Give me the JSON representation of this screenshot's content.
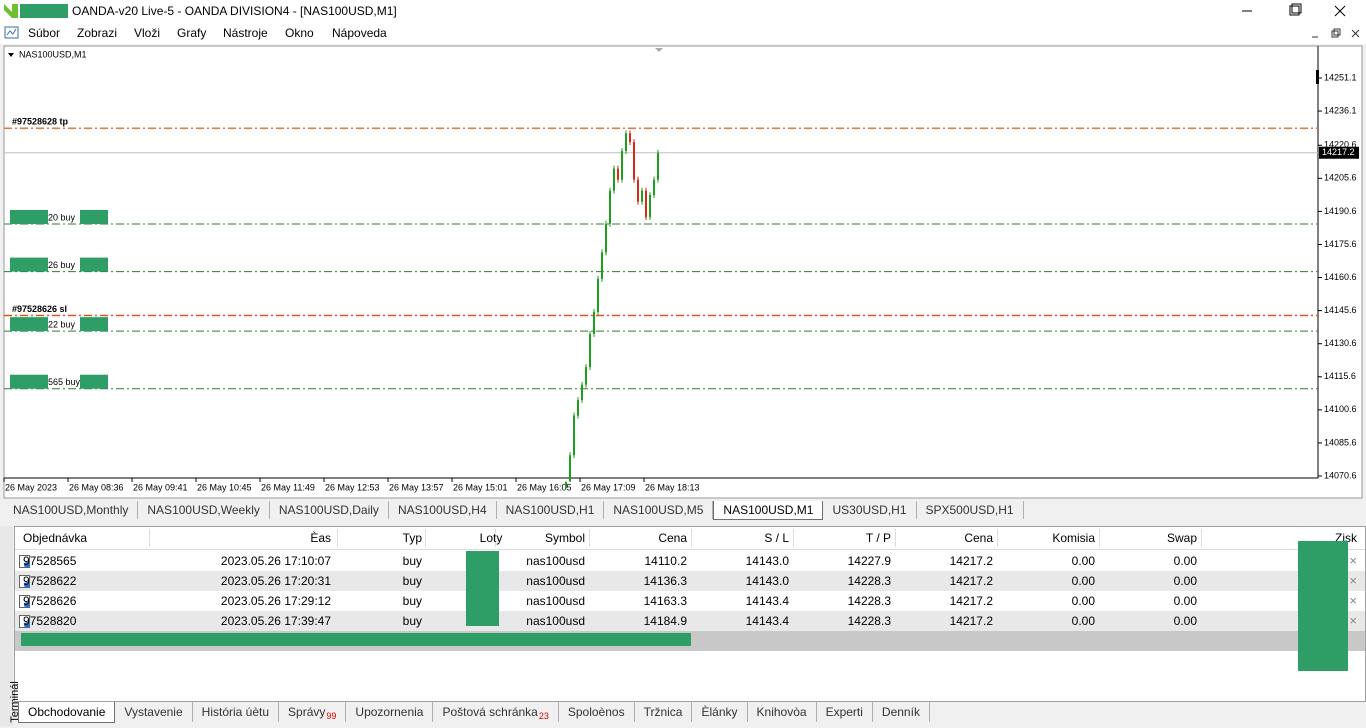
{
  "window": {
    "title": "OANDA-v20 Live-5 - OANDA DIVISION4 - [NAS100USD,M1]"
  },
  "menu": [
    "Súbor",
    "Zobrazi",
    "Vloži",
    "Grafy",
    "Nástroje",
    "Okno",
    "Nápoveda"
  ],
  "chart": {
    "symbol": "NAS100USD,M1",
    "ylim": [
      14069.7,
      14264.7
    ],
    "price_ticks": [
      14251.1,
      14236.1,
      14220.6,
      14205.6,
      14190.6,
      14175.6,
      14160.6,
      14145.6,
      14130.6,
      14115.6,
      14100.6,
      14085.6,
      14070.6
    ],
    "time_labels": [
      "26 May 2023",
      "26 May 08:36",
      "26 May 09:41",
      "26 May 10:45",
      "26 May 11:49",
      "26 May 12:53",
      "26 May 13:57",
      "26 May 15:01",
      "26 May 16:05",
      "26 May 17:09",
      "26 May 18:13"
    ],
    "current_price": 14217.2,
    "current_color": "#c0c0c0",
    "up_color": "#1e9e1e",
    "down_color": "#d42a1a",
    "closes": [
      14068,
      14080,
      14098,
      14105,
      14112,
      14120,
      14135,
      14145,
      14160,
      14172,
      14185,
      14200,
      14210,
      14205,
      14218,
      14226,
      14222,
      14205,
      14195,
      14200,
      14188,
      14198,
      14205,
      14217.2
    ],
    "lines": [
      {
        "label": "#97528628 tp",
        "price": 14228.3,
        "color": "#e8733a"
      },
      {
        "label": "20 buy",
        "price": 14184.9,
        "color": "#2e7d32"
      },
      {
        "label": "26 buy",
        "price": 14163.3,
        "color": "#2e7d32"
      },
      {
        "label": "#97528626 sl",
        "price": 14143.4,
        "color": "#e8501c"
      },
      {
        "label": "22 buy",
        "price": 14136.3,
        "color": "#2e7d32"
      },
      {
        "label": "565 buy",
        "price": 14110.2,
        "color": "#2e7d32"
      }
    ]
  },
  "chart_tabs": {
    "items": [
      "NAS100USD,Monthly",
      "NAS100USD,Weekly",
      "NAS100USD,Daily",
      "NAS100USD,H4",
      "NAS100USD,H1",
      "NAS100USD,M5",
      "NAS100USD,M1",
      "US30USD,H1",
      "SPX500USD,H1"
    ],
    "active": 6
  },
  "table": {
    "headers": [
      "Objednávka",
      "Èas",
      "Typ",
      "Loty",
      "Symbol",
      "Cena",
      "S / L",
      "T / P",
      "Cena",
      "Komisia",
      "Swap",
      "Zisk"
    ],
    "rows": [
      {
        "order": "97528565",
        "time": "2023.05.26 17:10:07",
        "type": "buy",
        "symbol": "nas100usd",
        "price": "14110.2",
        "sl": "14143.0",
        "tp": "14227.9",
        "current": "14217.2",
        "commission": "0.00",
        "swap": "0.00"
      },
      {
        "order": "97528622",
        "time": "2023.05.26 17:20:31",
        "type": "buy",
        "symbol": "nas100usd",
        "price": "14136.3",
        "sl": "14143.0",
        "tp": "14228.3",
        "current": "14217.2",
        "commission": "0.00",
        "swap": "0.00"
      },
      {
        "order": "97528626",
        "time": "2023.05.26 17:29:12",
        "type": "buy",
        "symbol": "nas100usd",
        "price": "14163.3",
        "sl": "14143.4",
        "tp": "14228.3",
        "current": "14217.2",
        "commission": "0.00",
        "swap": "0.00"
      },
      {
        "order": "97528820",
        "time": "2023.05.26 17:39:47",
        "type": "buy",
        "symbol": "nas100usd",
        "price": "14184.9",
        "sl": "14143.4",
        "tp": "14228.3",
        "current": "14217.2",
        "commission": "0.00",
        "swap": "0.00"
      }
    ]
  },
  "terminal_label": "Terminál",
  "bottom_tabs": [
    {
      "label": "Obchodovanie"
    },
    {
      "label": "Vystavenie"
    },
    {
      "label": "História úètu"
    },
    {
      "label": "Správy",
      "badge": "99"
    },
    {
      "label": "Upozornenia"
    },
    {
      "label": "Poštová schránka",
      "badge": "23"
    },
    {
      "label": "Spoloènos"
    },
    {
      "label": "Tržnica"
    },
    {
      "label": "Èlánky"
    },
    {
      "label": "Knihovòa"
    },
    {
      "label": "Experti"
    },
    {
      "label": "Denník"
    }
  ]
}
